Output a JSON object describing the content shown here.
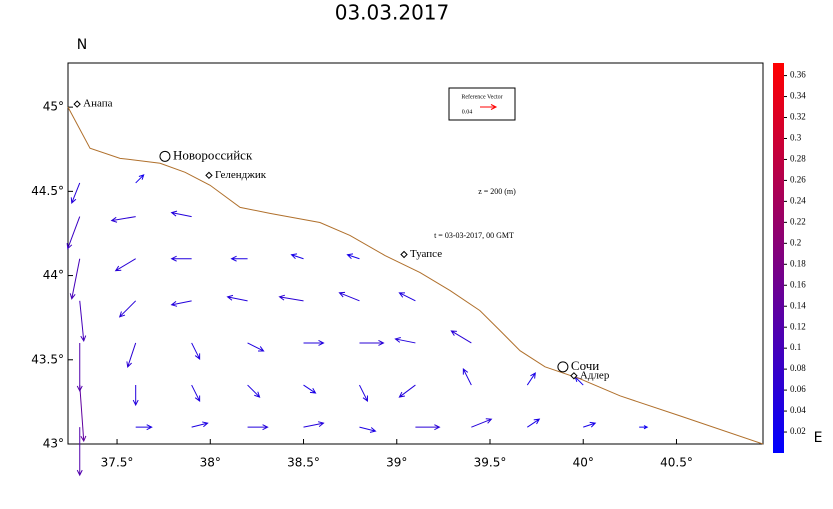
{
  "chart_data": {
    "type": "quiver",
    "title": "03.03.2017",
    "north_label": "N",
    "depth_label": "z = 200 (m)",
    "time_label": "t = 03-03-2017, 00 GMT",
    "reference": {
      "title": "Reference Vector",
      "value": 0.04
    },
    "xlim": [
      37.237,
      40.964
    ],
    "ylim": [
      43,
      45.262
    ],
    "xticks": [
      {
        "value": 37.5,
        "label": "37.5°"
      },
      {
        "value": 38,
        "label": "38°"
      },
      {
        "value": 38.5,
        "label": "38.5°"
      },
      {
        "value": 39,
        "label": "39°"
      },
      {
        "value": 39.5,
        "label": "39.5°"
      },
      {
        "value": 40,
        "label": "40°"
      },
      {
        "value": 40.5,
        "label": "40.5°"
      }
    ],
    "yticks": [
      {
        "value": 43,
        "label": "43°"
      },
      {
        "value": 43.5,
        "label": "43.5°"
      },
      {
        "value": 44,
        "label": "44°"
      },
      {
        "value": 44.5,
        "label": "44.5°"
      },
      {
        "value": 45,
        "label": "45°"
      }
    ],
    "coast": {
      "color": "#b0702c",
      "lon": [
        37.237,
        37.355,
        37.516,
        37.731,
        37.865,
        37.999,
        38.16,
        38.32,
        38.588,
        38.749,
        38.937,
        39.125,
        39.286,
        39.446,
        39.554,
        39.661,
        39.795,
        39.983,
        40.197,
        40.519,
        40.964
      ],
      "lat": [
        45.0,
        44.756,
        44.696,
        44.667,
        44.613,
        44.536,
        44.405,
        44.369,
        44.315,
        44.238,
        44.119,
        44.018,
        43.911,
        43.792,
        43.673,
        43.554,
        43.458,
        43.387,
        43.286,
        43.167,
        43.0
      ]
    },
    "cities": [
      {
        "name": "Анапа",
        "lon": 37.286,
        "lat": 45.018,
        "major": false
      },
      {
        "name": "Новороссийск",
        "lon": 37.757,
        "lat": 44.708,
        "major": true
      },
      {
        "name": "Геленджик",
        "lon": 37.993,
        "lat": 44.595,
        "major": false
      },
      {
        "name": "Туапсе",
        "lon": 39.039,
        "lat": 44.125,
        "major": false
      },
      {
        "name": "Сочи",
        "lon": 39.891,
        "lat": 43.458,
        "major": true
      },
      {
        "name": "Адлер",
        "lon": 39.95,
        "lat": 43.405,
        "major": false
      }
    ],
    "vectors": {
      "lon": [
        37.3,
        37.6,
        37.9,
        38.2,
        38.5,
        38.8,
        39.1,
        39.4,
        39.7,
        40.0,
        40.3,
        37.3,
        37.6,
        37.9,
        38.2,
        38.5,
        38.8,
        39.1,
        39.4,
        39.7,
        40.0,
        37.3,
        37.6,
        37.9,
        38.2,
        38.5,
        38.8,
        39.1,
        39.4,
        37.3,
        37.6,
        37.9,
        38.2,
        38.5,
        38.8,
        39.1,
        37.3,
        37.6,
        37.9,
        38.2,
        38.5,
        38.8,
        37.3,
        37.6,
        37.9,
        37.3,
        37.6
      ],
      "lat": [
        43.1,
        43.1,
        43.1,
        43.1,
        43.1,
        43.1,
        43.1,
        43.1,
        43.1,
        43.1,
        43.1,
        43.35,
        43.35,
        43.35,
        43.35,
        43.35,
        43.35,
        43.35,
        43.35,
        43.35,
        43.35,
        43.6,
        43.6,
        43.6,
        43.6,
        43.6,
        43.6,
        43.6,
        43.6,
        43.85,
        43.85,
        43.85,
        43.85,
        43.85,
        43.85,
        43.85,
        44.1,
        44.1,
        44.1,
        44.1,
        44.1,
        44.1,
        44.35,
        44.35,
        44.35,
        44.55,
        44.55
      ],
      "u": [
        0,
        0.04,
        0.04,
        0.05,
        0.05,
        0.04,
        0.06,
        0.05,
        0.03,
        0.03,
        0.02,
        0.01,
        0,
        0.02,
        0.03,
        0.03,
        0.02,
        -0.04,
        -0.02,
        0.02,
        -0.02,
        0,
        -0.02,
        0.02,
        0.04,
        0.05,
        0.06,
        -0.05,
        -0.05,
        0.01,
        -0.04,
        -0.05,
        -0.05,
        -0.06,
        -0.05,
        -0.04,
        -0.02,
        -0.05,
        -0.05,
        -0.04,
        -0.03,
        -0.03,
        -0.03,
        -0.06,
        -0.05,
        -0.02,
        0.02
      ],
      "v": [
        -0.12,
        0,
        0.01,
        0,
        0.01,
        -0.01,
        0,
        0.02,
        0.02,
        0.01,
        0,
        -0.14,
        -0.05,
        -0.04,
        -0.03,
        -0.02,
        -0.04,
        -0.03,
        0.04,
        0.03,
        0.02,
        -0.12,
        -0.06,
        -0.04,
        -0.02,
        0,
        0,
        0.01,
        0.03,
        -0.1,
        -0.04,
        -0.01,
        0.01,
        0.01,
        0.02,
        0.02,
        -0.1,
        -0.03,
        0,
        0,
        0.01,
        0.01,
        -0.08,
        -0.01,
        0.01,
        -0.05,
        0.02
      ]
    },
    "colorbar": {
      "label": "E",
      "lim": [
        0,
        0.372
      ],
      "low_color": "#0000ff",
      "high_color": "#ff0000",
      "ticks": [
        0.02,
        0.04,
        0.06,
        0.08,
        0.1,
        0.12,
        0.14,
        0.16,
        0.18,
        0.2,
        0.22,
        0.24,
        0.26,
        0.28,
        0.3,
        0.32,
        0.34,
        0.36
      ]
    }
  }
}
